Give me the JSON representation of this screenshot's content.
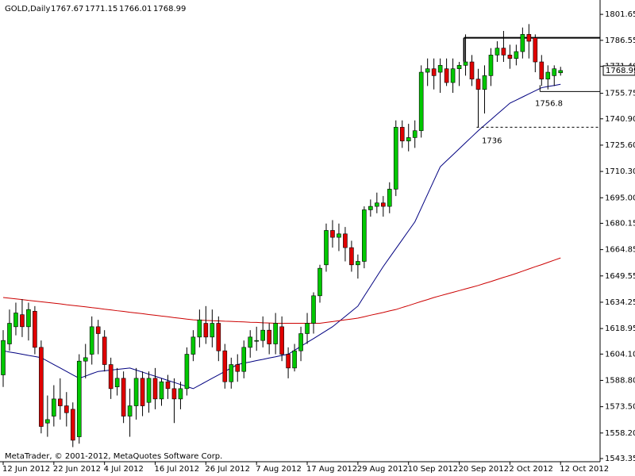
{
  "chart_data": {
    "type": "candlestick",
    "title": "GOLD,Daily",
    "quote": [
      1767.67,
      1771.15,
      1766.01,
      1768.99
    ],
    "last_price": 1768.99,
    "watermark": "MetaTrader, © 2001-2012, MetaQuotes Software Corp.",
    "categories": [
      "12 Jun 2012",
      null,
      null,
      null,
      null,
      null,
      null,
      null,
      "22 Jun 2012",
      null,
      null,
      null,
      null,
      null,
      null,
      null,
      "4 Jul 2012",
      null,
      null,
      null,
      null,
      null,
      null,
      null,
      "16 Jul 2012",
      null,
      null,
      null,
      null,
      null,
      null,
      null,
      "26 Jul 2012",
      null,
      null,
      null,
      null,
      null,
      null,
      null,
      "7 Aug 2012",
      null,
      null,
      null,
      null,
      null,
      null,
      null,
      "17 Aug 2012",
      null,
      null,
      null,
      null,
      null,
      null,
      null,
      "29 Aug 2012",
      null,
      null,
      null,
      null,
      null,
      null,
      null,
      "10 Sep 2012",
      null,
      null,
      null,
      null,
      null,
      null,
      null,
      "20 Sep 2012",
      null,
      null,
      null,
      null,
      null,
      null,
      null,
      "2 Oct 2012",
      null,
      null,
      null,
      null,
      null,
      null,
      null,
      "12 Oct 2012"
    ],
    "open": [
      1592,
      1610,
      1620,
      1627,
      1620,
      1629,
      1608,
      1564,
      1568,
      1578,
      1574,
      1572,
      1556,
      1600,
      1604,
      1620,
      1614,
      1598,
      1585,
      1590,
      1568,
      1574,
      1590,
      1576,
      1590,
      1578,
      1588,
      1584,
      1578,
      1584,
      1604,
      1614,
      1622,
      1614,
      1622,
      1606,
      1588,
      1598,
      1594,
      1608,
      1612,
      1612,
      1618,
      1610,
      1620,
      1604,
      1596,
      1606,
      1616,
      1622,
      1638,
      1656,
      1676,
      1672,
      1674,
      1666,
      1656,
      1658,
      1688,
      1690,
      1692,
      1690,
      1700,
      1736,
      1728,
      1730,
      1734,
      1768,
      1770,
      1768,
      1770,
      1762,
      1770,
      1772,
      1774,
      1764,
      1758,
      1766,
      1778,
      1782,
      1778,
      1776,
      1780,
      1790,
      1788,
      1774,
      1764,
      1766,
      1767.67
    ],
    "high": [
      1618,
      1630,
      1634,
      1636,
      1634,
      1632,
      1612,
      1580,
      1586,
      1590,
      1582,
      1576,
      1604,
      1610,
      1626,
      1624,
      1618,
      1602,
      1596,
      1594,
      1584,
      1596,
      1594,
      1594,
      1596,
      1590,
      1592,
      1590,
      1588,
      1608,
      1618,
      1630,
      1632,
      1630,
      1626,
      1610,
      1602,
      1604,
      1612,
      1618,
      1620,
      1626,
      1622,
      1628,
      1626,
      1608,
      1610,
      1620,
      1628,
      1640,
      1656,
      1680,
      1682,
      1680,
      1678,
      1670,
      1662,
      1690,
      1694,
      1698,
      1696,
      1704,
      1740,
      1740,
      1738,
      1740,
      1772,
      1776,
      1776,
      1776,
      1776,
      1776,
      1774,
      1790,
      1778,
      1770,
      1772,
      1782,
      1786,
      1792,
      1784,
      1784,
      1794,
      1796,
      1790,
      1778,
      1772,
      1772,
      1771.15
    ],
    "low": [
      1585,
      1606,
      1615,
      1614,
      1612,
      1604,
      1558,
      1556,
      1562,
      1566,
      1562,
      1550,
      1552,
      1590,
      1598,
      1604,
      1594,
      1578,
      1580,
      1564,
      1556,
      1566,
      1568,
      1570,
      1572,
      1574,
      1578,
      1564,
      1572,
      1580,
      1600,
      1608,
      1610,
      1608,
      1600,
      1584,
      1584,
      1588,
      1590,
      1602,
      1606,
      1608,
      1604,
      1604,
      1600,
      1590,
      1594,
      1600,
      1610,
      1616,
      1634,
      1652,
      1666,
      1664,
      1658,
      1652,
      1648,
      1654,
      1684,
      1686,
      1684,
      1686,
      1696,
      1724,
      1722,
      1724,
      1730,
      1760,
      1758,
      1756,
      1760,
      1756,
      1760,
      1766,
      1760,
      1736,
      1744,
      1760,
      1774,
      1774,
      1770,
      1772,
      1776,
      1776,
      1768,
      1760,
      1758,
      1760,
      1766.01
    ],
    "close": [
      1612,
      1622,
      1628,
      1620,
      1630,
      1608,
      1562,
      1566,
      1578,
      1574,
      1570,
      1554,
      1600,
      1602,
      1620,
      1616,
      1598,
      1584,
      1590,
      1568,
      1574,
      1590,
      1574,
      1590,
      1578,
      1588,
      1584,
      1578,
      1584,
      1604,
      1614,
      1624,
      1614,
      1622,
      1606,
      1588,
      1598,
      1594,
      1608,
      1614,
      1612,
      1618,
      1610,
      1622,
      1604,
      1596,
      1606,
      1616,
      1622,
      1638,
      1654,
      1676,
      1672,
      1674,
      1666,
      1656,
      1658,
      1688,
      1690,
      1692,
      1690,
      1700,
      1736,
      1728,
      1730,
      1734,
      1768,
      1770,
      1766,
      1772,
      1762,
      1770,
      1772,
      1774,
      1764,
      1758,
      1766,
      1778,
      1782,
      1778,
      1776,
      1780,
      1790,
      1786,
      1774,
      1764,
      1768,
      1770,
      1768.99
    ],
    "moving_averages": [
      {
        "color": "#000080",
        "values": [
          1606,
          1605.3,
          1604.7,
          1604,
          1603.3,
          1602.7,
          1602,
          1600,
          1598,
          1596,
          1594,
          1592,
          1590,
          1591.3,
          1592.7,
          1594,
          1594.4,
          1594.8,
          1595.2,
          1595.6,
          1596,
          1594.8,
          1593.6,
          1592.4,
          1591.2,
          1590,
          1588.8,
          1587.6,
          1586.4,
          1585.2,
          1584,
          1586,
          1588,
          1590,
          1592,
          1594,
          1596,
          1598,
          1598.8,
          1599.5,
          1600.3,
          1601,
          1601.8,
          1602.5,
          1603.3,
          1604,
          1606.3,
          1608.6,
          1610.9,
          1613.1,
          1615.4,
          1617.7,
          1620,
          1623,
          1626,
          1629,
          1632,
          1637.8,
          1643.5,
          1649.3,
          1655,
          1660.2,
          1665.4,
          1670.6,
          1675.8,
          1681,
          1689,
          1697,
          1705,
          1713,
          1716.5,
          1720,
          1723.5,
          1727,
          1730.5,
          1734,
          1737.2,
          1740.4,
          1743.6,
          1746.8,
          1750,
          1751.8,
          1753.6,
          1755.4,
          1757.2,
          1759,
          1759.7,
          1760.3,
          1761
        ]
      },
      {
        "color": "#cc0000",
        "values": [
          1637,
          1636.6,
          1636.2,
          1635.8,
          1635.3,
          1634.9,
          1634.5,
          1634.1,
          1633.7,
          1633.3,
          1632.8,
          1632.4,
          1632,
          1631.6,
          1631.1,
          1630.7,
          1630.2,
          1629.8,
          1629.3,
          1628.9,
          1628.4,
          1628,
          1627.6,
          1627.1,
          1626.7,
          1626.2,
          1625.8,
          1625.3,
          1624.9,
          1624.4,
          1624,
          1623.8,
          1623.7,
          1623.5,
          1623.4,
          1623.2,
          1623.1,
          1622.9,
          1622.8,
          1622.6,
          1622.5,
          1622.3,
          1622.2,
          1622,
          1622,
          1622,
          1622,
          1622,
          1622,
          1622,
          1622,
          1622.5,
          1623,
          1623.5,
          1624,
          1624.5,
          1625,
          1625.8,
          1626.7,
          1627.5,
          1628.3,
          1629.2,
          1630,
          1631.2,
          1632.3,
          1633.5,
          1634.7,
          1635.8,
          1637,
          1638,
          1639,
          1640,
          1641,
          1642,
          1643,
          1644,
          1645.2,
          1646.3,
          1647.5,
          1648.7,
          1649.8,
          1651,
          1652.3,
          1653.6,
          1654.9,
          1656.1,
          1657.4,
          1658.7,
          1660
        ]
      }
    ],
    "levels": [
      1788,
      1756.8,
      1736
    ],
    "up_color": "#00c800",
    "down_color": "#e00000",
    "ylim": [
      1541.5,
      1810
    ],
    "yticks": [
      1801.65,
      1786.55,
      {
        "value": 1771.4,
        "label": "1771.40"
      },
      1755.75,
      {
        "value": 1740.9,
        "label": "1740.90"
      },
      {
        "value": 1725.6,
        "label": "1725.60"
      },
      {
        "value": 1710.3,
        "label": "1710.30"
      },
      {
        "value": 1695,
        "label": "1695.00"
      },
      1680.15,
      1664.85,
      1649.55,
      1634.25,
      1618.95,
      {
        "value": 1604.1,
        "label": "1604.10"
      },
      {
        "value": 1588.8,
        "label": "1588.80"
      },
      {
        "value": 1573.5,
        "label": "1573.50"
      },
      {
        "value": 1558.2,
        "label": "1558.20"
      },
      1543.35
    ]
  }
}
